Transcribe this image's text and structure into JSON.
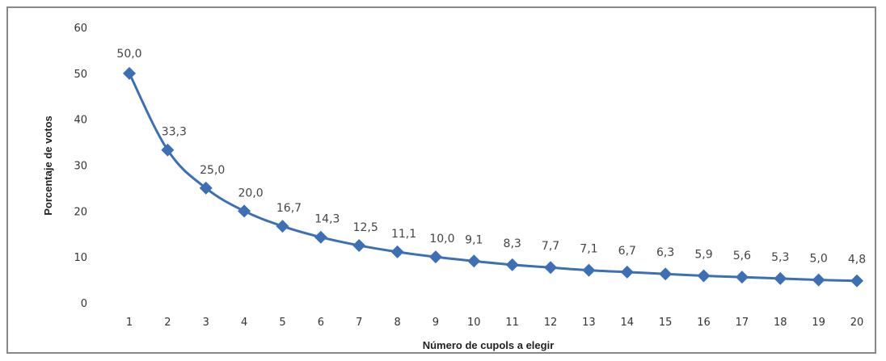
{
  "chart_data": {
    "type": "line",
    "x": [
      1,
      2,
      3,
      4,
      5,
      6,
      7,
      8,
      9,
      10,
      11,
      12,
      13,
      14,
      15,
      16,
      17,
      18,
      19,
      20
    ],
    "series": [
      {
        "values": [
          50.0,
          33.3,
          25.0,
          20.0,
          16.7,
          14.3,
          12.5,
          11.1,
          10.0,
          9.1,
          8.3,
          7.7,
          7.1,
          6.7,
          6.3,
          5.9,
          5.6,
          5.3,
          5.0,
          4.8
        ],
        "labels": [
          "50,0",
          "33,3",
          "25,0",
          "20,0",
          "16,7",
          "14,3",
          "12,5",
          "11,1",
          "10,0",
          "9,1",
          "8,3",
          "7,7",
          "7,1",
          "6,7",
          "6,3",
          "5,9",
          "5,6",
          "5,3",
          "5,0",
          "4,8"
        ],
        "color": "#3c6fb4",
        "marker": "diamond"
      }
    ],
    "xlabel": "Número de  cupols a elegir",
    "ylabel": "Porcentaje de votos",
    "yticks": [
      "0",
      "10",
      "20",
      "30",
      "40",
      "50",
      "60"
    ],
    "ylim": [
      0,
      60
    ],
    "grid": false,
    "legend": false
  }
}
